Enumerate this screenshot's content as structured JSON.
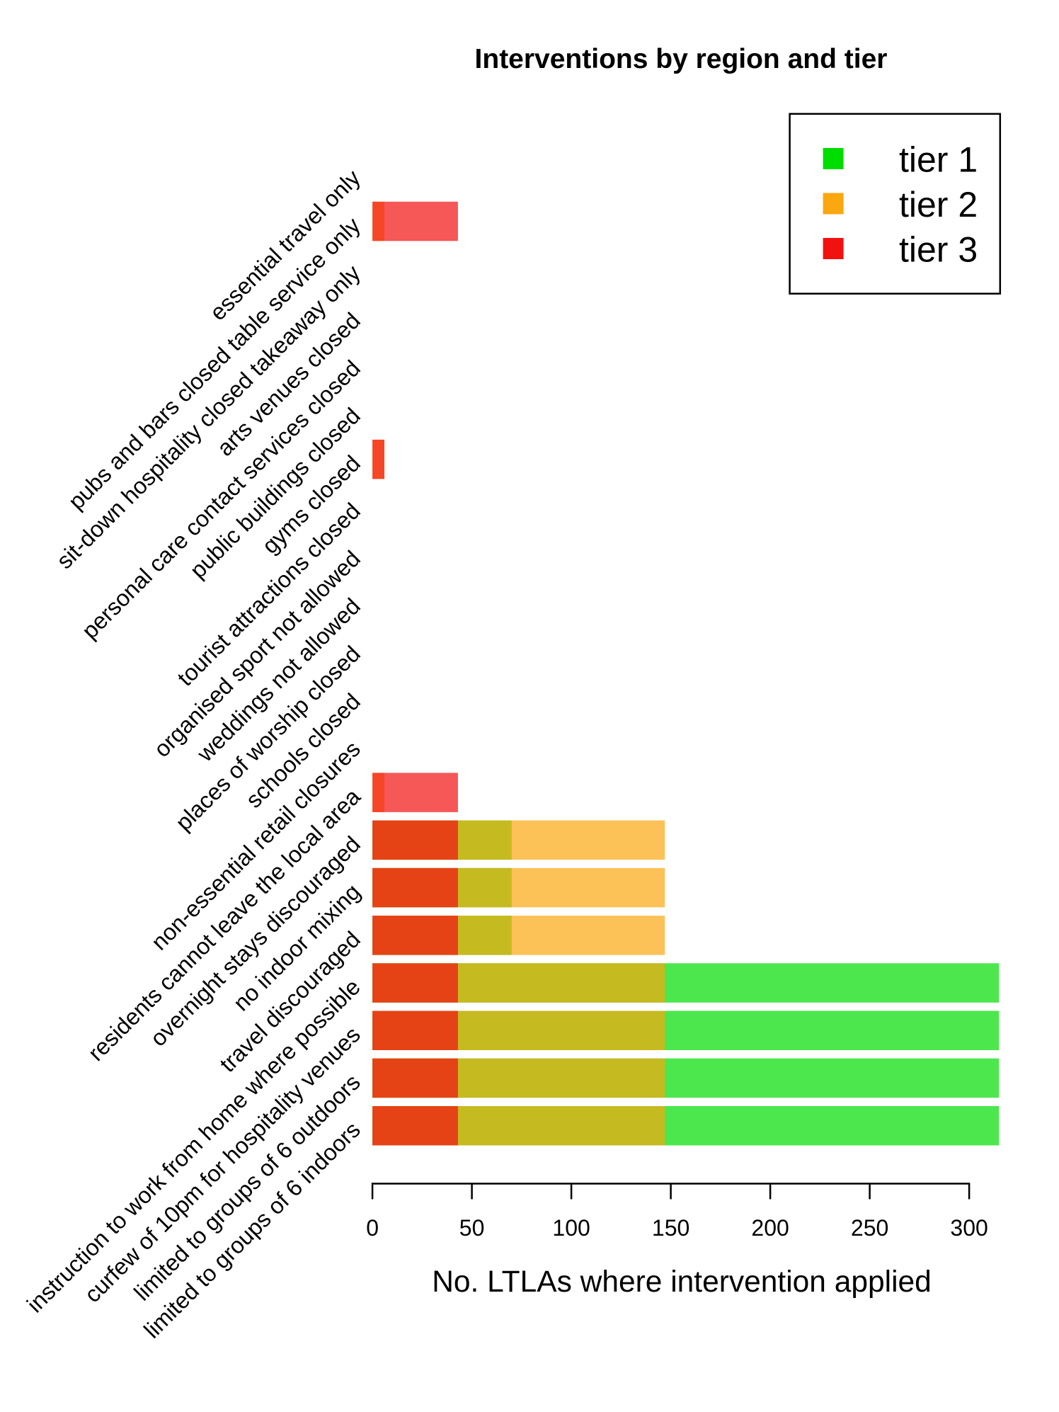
{
  "chart_data": {
    "type": "bar",
    "orientation": "horizontal",
    "overlapping_series": true,
    "title": "Interventions by region and tier",
    "xlabel": "No. LTLAs where intervention applied",
    "ylabel": "",
    "xlim": [
      0,
      315
    ],
    "xticks": [
      0,
      50,
      100,
      150,
      200,
      250,
      300
    ],
    "grid": false,
    "bar_alpha": 0.7,
    "legend": {
      "position": "top-right",
      "entries": [
        {
          "label": "tier 1",
          "color": "#00dd00"
        },
        {
          "label": "tier 2",
          "color": "#fba70f"
        },
        {
          "label": "tier 3",
          "color": "#f21111"
        }
      ]
    },
    "categories": [
      "essential travel only",
      "pubs and bars closed table service only",
      "sit-down hospitality closed takeaway only",
      "arts venues closed",
      "personal care contact services closed",
      "public buildings closed",
      "gyms closed",
      "tourist attractions closed",
      "organised sport not allowed",
      "weddings not allowed",
      "places of worship closed",
      "schools closed",
      "non-essential retail closures",
      "residents cannot leave the local area",
      "overnight stays discouraged",
      "no indoor mixing",
      "travel discouraged",
      "instruction to work from home where possible",
      "curfew of 10pm for hospitality venues",
      "limited to groups of 6 outdoors",
      "limited to groups of 6 indoors"
    ],
    "series": [
      {
        "name": "tier 1",
        "color": "#00dd00",
        "values": [
          0,
          0,
          0,
          0,
          0,
          0,
          0,
          0,
          0,
          0,
          0,
          0,
          0,
          0,
          70,
          70,
          70,
          315,
          315,
          315,
          315
        ]
      },
      {
        "name": "tier 2",
        "color": "#fba70f",
        "values": [
          0,
          6,
          0,
          0,
          0,
          0,
          6,
          0,
          0,
          0,
          0,
          0,
          0,
          6,
          147,
          147,
          147,
          147,
          147,
          147,
          147
        ]
      },
      {
        "name": "tier 3",
        "color": "#f21111",
        "values": [
          0,
          43,
          0,
          0,
          0,
          0,
          6,
          0,
          0,
          0,
          0,
          0,
          0,
          43,
          43,
          43,
          43,
          43,
          43,
          43,
          43
        ]
      }
    ]
  }
}
